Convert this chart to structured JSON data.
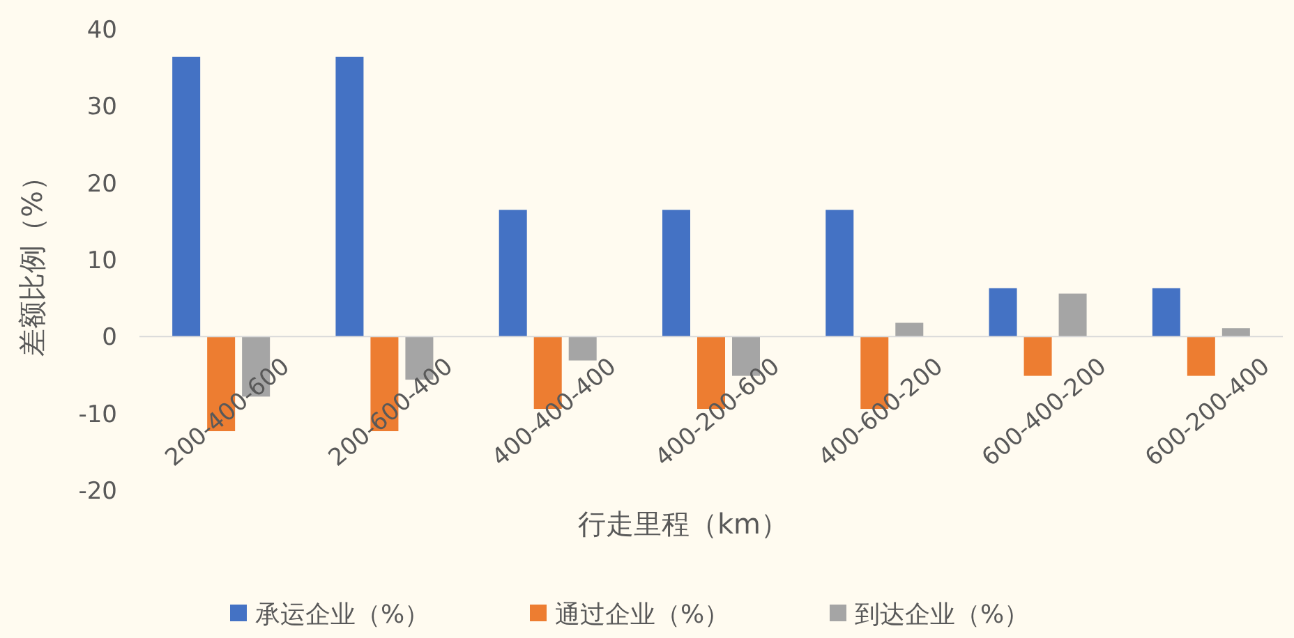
{
  "chart_data": {
    "type": "bar",
    "xlabel": "行走里程（km）",
    "ylabel": "差额比例（%）",
    "categories": [
      "200-400-600",
      "200-600-400",
      "400-400-400",
      "400-200-600",
      "400-600-200",
      "600-400-200",
      "600-200-400"
    ],
    "series": [
      {
        "name": "承运企业（%）",
        "color": "#4472c4",
        "values": [
          36.4,
          36.4,
          16.5,
          16.5,
          16.5,
          6.3,
          6.3
        ]
      },
      {
        "name": "通过企业（%）",
        "color": "#ed7d31",
        "values": [
          -12.3,
          -12.3,
          -9.4,
          -9.4,
          -9.4,
          -5.1,
          -5.1
        ]
      },
      {
        "name": "到达企业（%）",
        "color": "#a5a5a5",
        "values": [
          -7.8,
          -5.6,
          -3.1,
          -5.1,
          1.8,
          5.6,
          1.1
        ]
      }
    ],
    "ylim": [
      -20,
      40
    ],
    "yticks": [
      -20,
      -10,
      0,
      10,
      20,
      30,
      40
    ],
    "grid": false,
    "legend": "bottom"
  }
}
